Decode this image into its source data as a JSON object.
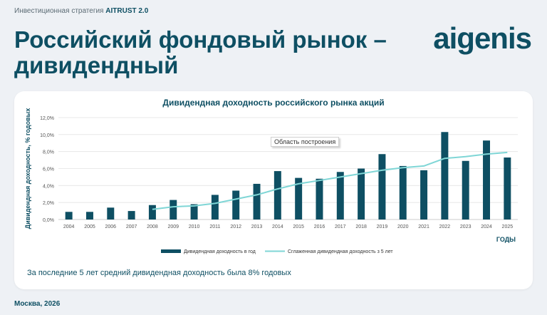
{
  "header": {
    "strategy_prefix": "Инвестиционная стратегия",
    "strategy_name": "AITRUST 2.0",
    "title": "Российский фондовый рынок – дивидендный",
    "logo_text": "aigenis"
  },
  "footnote": "За последние 5 лет средний дивидендная доходность была 8% годовых",
  "footer": "Москва, 2026",
  "chart_data": {
    "type": "bar",
    "title": "Дивидендная доходность российского рынка акций",
    "ylabel": "Дивидендная доходность, % годовых",
    "xlabel": "ГОДЫ",
    "ylim": [
      0,
      12
    ],
    "yticks": [
      "0,0%",
      "2,0%",
      "4,0%",
      "6,0%",
      "8,0%",
      "10,0%",
      "12,0%"
    ],
    "grid": true,
    "legend_position": "bottom",
    "tooltip": "Область построения",
    "categories": [
      "2004",
      "2005",
      "2006",
      "2007",
      "2008",
      "2009",
      "2010",
      "2011",
      "2012",
      "2013",
      "2014",
      "2015",
      "2016",
      "2017",
      "2018",
      "2019",
      "2020",
      "2021",
      "2022",
      "2023",
      "2024",
      "2025"
    ],
    "series": [
      {
        "name": "Дивидендная доходность в год",
        "type": "bar",
        "color": "#0e4f63",
        "values": [
          0.9,
          0.9,
          1.4,
          1.0,
          1.7,
          2.3,
          1.8,
          2.9,
          3.4,
          4.2,
          5.7,
          4.9,
          4.8,
          5.6,
          6.0,
          7.7,
          6.3,
          5.8,
          10.3,
          6.9,
          9.3,
          7.3
        ]
      },
      {
        "name": "Сглаженная дивидендная доходность з 5 лет",
        "type": "line",
        "color": "#7fd6d6",
        "values": [
          null,
          null,
          null,
          null,
          1.2,
          1.5,
          1.6,
          1.9,
          2.4,
          2.9,
          3.6,
          4.2,
          4.6,
          5.0,
          5.4,
          5.8,
          6.1,
          6.3,
          7.2,
          7.4,
          7.7,
          7.9
        ]
      }
    ]
  }
}
